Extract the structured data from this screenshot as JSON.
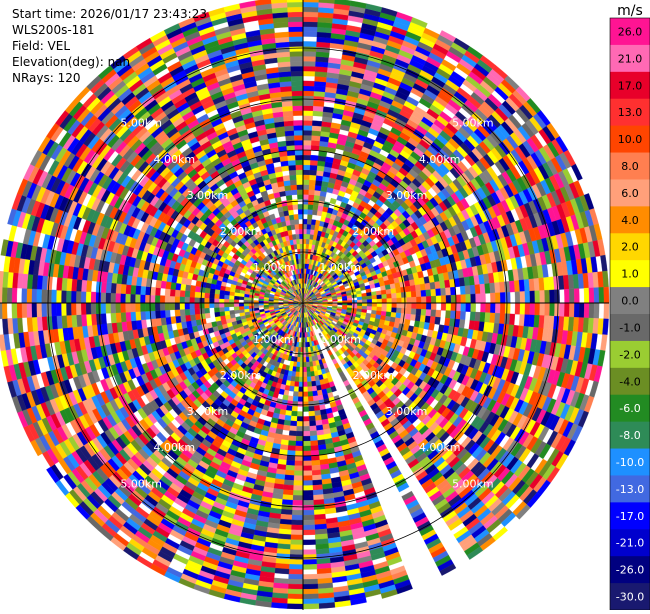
{
  "header": {
    "start_time": "Start time: 2026/01/17 23:43:23",
    "station": "WLS200s-181",
    "field": "Field: VEL",
    "elevation": "Elevation(deg): nan",
    "nrays": "NRays: 120"
  },
  "chart_data": {
    "type": "ppi",
    "field": "VEL",
    "unit": "m/s",
    "n_rays": 120,
    "range_rings_km": [
      1,
      2,
      3,
      4,
      5
    ],
    "ring_labels": [
      "1.00km",
      "2.00km",
      "3.00km",
      "4.00km",
      "5.00km"
    ],
    "max_range_km": 6,
    "crosshair": true,
    "missing_sectors_deg": [
      [
        148,
        151
      ],
      [
        154,
        158
      ]
    ],
    "colorbar": {
      "unit": "m/s",
      "ticks": [
        "26.0",
        "21.0",
        "17.0",
        "13.0",
        "10.0",
        "8.0",
        "6.0",
        "4.0",
        "2.0",
        "1.0",
        "0.0",
        "-1.0",
        "-2.0",
        "-4.0",
        "-6.0",
        "-8.0",
        "-10.0",
        "-13.0",
        "-17.0",
        "-21.0",
        "-26.0",
        "-30.0"
      ],
      "colors": [
        "#ff1493",
        "#ff69b4",
        "#e8002a",
        "#ff3030",
        "#ff4500",
        "#ff7f50",
        "#ffa07a",
        "#ff8c00",
        "#ffd700",
        "#ffff00",
        "#808080",
        "#696969",
        "#9acd32",
        "#6b8e23",
        "#228b22",
        "#2e8b57",
        "#1e90ff",
        "#4169e1",
        "#0000ff",
        "#0000cd",
        "#000080",
        "#191970"
      ],
      "label_colors": [
        "#000000",
        "#000000",
        "#000000",
        "#000000",
        "#000000",
        "#000000",
        "#000000",
        "#000000",
        "#000000",
        "#000000",
        "#000000",
        "#000000",
        "#000000",
        "#000000",
        "#ffffff",
        "#ffffff",
        "#ffffff",
        "#ffffff",
        "#ffffff",
        "#ffffff",
        "#ffffff",
        "#ffffff"
      ]
    }
  }
}
